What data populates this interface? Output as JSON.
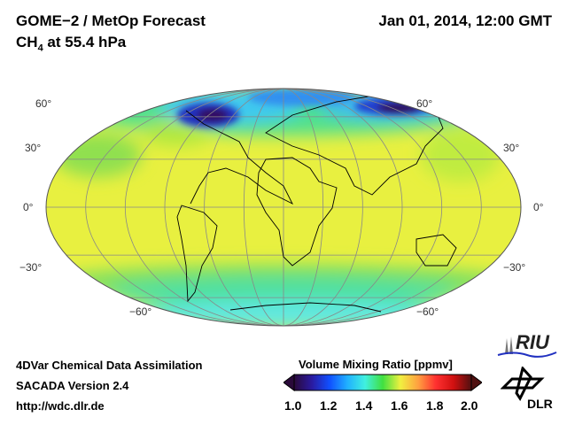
{
  "header": {
    "title": "GOME−2 / MetOp Forecast",
    "species_main": "CH",
    "species_sub": "4",
    "species_rest": " at 55.4 hPa",
    "datetime": "Jan 01, 2014, 12:00 GMT"
  },
  "map": {
    "projection": "Mollweide",
    "lat_labels": [
      "60°",
      "30°",
      "0°",
      "−30°",
      "−60°"
    ],
    "lat_values": [
      60,
      30,
      0,
      -30,
      -60
    ]
  },
  "footer": {
    "line1": "4DVar Chemical Data Assimilation",
    "line2": "SACADA Version 2.4",
    "line3": "http://wdc.dlr.de"
  },
  "colorbar": {
    "title": "Volume Mixing Ratio [ppmv]",
    "ticks": [
      "1.0",
      "1.2",
      "1.4",
      "1.6",
      "1.8",
      "2.0"
    ],
    "range": [
      1.0,
      2.0
    ],
    "colors": [
      "#2a0a3a",
      "#2a1aa0",
      "#1050ff",
      "#20b0ff",
      "#40f0e0",
      "#40e040",
      "#f0f040",
      "#ffa040",
      "#ff3030",
      "#d01010",
      "#501010"
    ]
  },
  "logos": {
    "riu": "RIU",
    "dlr": "DLR"
  }
}
